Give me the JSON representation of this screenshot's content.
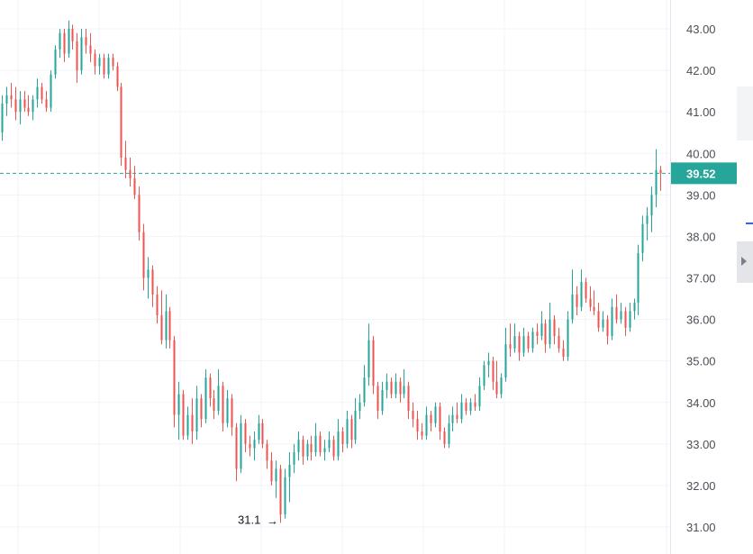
{
  "chart_data": {
    "type": "candlestick",
    "ylim": [
      30.7,
      43.7
    ],
    "y_ticks": [
      "43.00",
      "42.00",
      "41.00",
      "40.00",
      "39.00",
      "38.00",
      "37.00",
      "36.00",
      "35.00",
      "34.00",
      "33.00",
      "32.00",
      "31.00"
    ],
    "last_price": "39.52",
    "low_marker": {
      "label": "31.1",
      "value": 31.1
    },
    "up_color": "#26a69a",
    "down_color": "#ef5350",
    "price_line_color": "#26a69a",
    "grid": true,
    "candles": [
      {
        "o": 40.5,
        "h": 41.4,
        "l": 40.3,
        "c": 41.2
      },
      {
        "o": 41.2,
        "h": 41.6,
        "l": 40.9,
        "c": 41.4
      },
      {
        "o": 41.4,
        "h": 41.7,
        "l": 41.1,
        "c": 41.3
      },
      {
        "o": 41.3,
        "h": 41.6,
        "l": 40.8,
        "c": 41.0
      },
      {
        "o": 41.0,
        "h": 41.5,
        "l": 40.7,
        "c": 41.3
      },
      {
        "o": 41.3,
        "h": 41.5,
        "l": 41.0,
        "c": 41.1
      },
      {
        "o": 41.1,
        "h": 41.4,
        "l": 40.9,
        "c": 41.0
      },
      {
        "o": 41.0,
        "h": 41.4,
        "l": 40.8,
        "c": 41.3
      },
      {
        "o": 41.3,
        "h": 41.8,
        "l": 41.1,
        "c": 41.6
      },
      {
        "o": 41.6,
        "h": 41.7,
        "l": 41.2,
        "c": 41.3
      },
      {
        "o": 41.3,
        "h": 41.5,
        "l": 41.0,
        "c": 41.1
      },
      {
        "o": 41.1,
        "h": 42.0,
        "l": 41.0,
        "c": 41.9
      },
      {
        "o": 41.9,
        "h": 42.6,
        "l": 41.8,
        "c": 42.5
      },
      {
        "o": 42.5,
        "h": 43.0,
        "l": 42.3,
        "c": 42.9
      },
      {
        "o": 42.9,
        "h": 43.0,
        "l": 42.2,
        "c": 42.4
      },
      {
        "o": 42.4,
        "h": 43.2,
        "l": 42.3,
        "c": 43.0
      },
      {
        "o": 43.0,
        "h": 43.1,
        "l": 42.5,
        "c": 42.7
      },
      {
        "o": 42.7,
        "h": 42.9,
        "l": 41.7,
        "c": 42.0
      },
      {
        "o": 42.0,
        "h": 43.0,
        "l": 41.9,
        "c": 42.8
      },
      {
        "o": 42.8,
        "h": 43.0,
        "l": 42.4,
        "c": 42.6
      },
      {
        "o": 42.6,
        "h": 42.9,
        "l": 42.2,
        "c": 42.4
      },
      {
        "o": 42.4,
        "h": 42.5,
        "l": 41.9,
        "c": 42.1
      },
      {
        "o": 42.1,
        "h": 42.4,
        "l": 41.9,
        "c": 42.3
      },
      {
        "o": 42.3,
        "h": 42.4,
        "l": 41.8,
        "c": 41.9
      },
      {
        "o": 41.9,
        "h": 42.4,
        "l": 41.8,
        "c": 42.3
      },
      {
        "o": 42.3,
        "h": 42.4,
        "l": 42.0,
        "c": 42.1
      },
      {
        "o": 42.1,
        "h": 42.2,
        "l": 41.5,
        "c": 41.6
      },
      {
        "o": 41.6,
        "h": 41.7,
        "l": 39.7,
        "c": 39.9
      },
      {
        "o": 39.9,
        "h": 40.3,
        "l": 39.4,
        "c": 39.6
      },
      {
        "o": 39.6,
        "h": 39.9,
        "l": 39.2,
        "c": 39.4
      },
      {
        "o": 39.4,
        "h": 39.7,
        "l": 38.9,
        "c": 39.0
      },
      {
        "o": 39.0,
        "h": 39.2,
        "l": 37.9,
        "c": 38.1
      },
      {
        "o": 38.1,
        "h": 38.3,
        "l": 36.7,
        "c": 37.0
      },
      {
        "o": 37.0,
        "h": 37.5,
        "l": 36.5,
        "c": 37.2
      },
      {
        "o": 37.2,
        "h": 37.3,
        "l": 36.3,
        "c": 36.6
      },
      {
        "o": 36.6,
        "h": 36.8,
        "l": 35.9,
        "c": 36.1
      },
      {
        "o": 36.1,
        "h": 36.7,
        "l": 35.4,
        "c": 35.5
      },
      {
        "o": 35.5,
        "h": 36.6,
        "l": 35.3,
        "c": 36.2
      },
      {
        "o": 36.2,
        "h": 36.3,
        "l": 35.3,
        "c": 35.5
      },
      {
        "o": 35.5,
        "h": 35.6,
        "l": 33.4,
        "c": 33.7
      },
      {
        "o": 33.7,
        "h": 34.5,
        "l": 33.1,
        "c": 34.2
      },
      {
        "o": 34.2,
        "h": 34.3,
        "l": 33.1,
        "c": 33.2
      },
      {
        "o": 33.2,
        "h": 33.9,
        "l": 33.1,
        "c": 33.7
      },
      {
        "o": 33.7,
        "h": 34.1,
        "l": 33.0,
        "c": 33.3
      },
      {
        "o": 33.3,
        "h": 34.4,
        "l": 33.1,
        "c": 34.1
      },
      {
        "o": 34.1,
        "h": 34.2,
        "l": 33.4,
        "c": 33.6
      },
      {
        "o": 33.6,
        "h": 34.8,
        "l": 33.5,
        "c": 34.6
      },
      {
        "o": 34.6,
        "h": 34.7,
        "l": 33.9,
        "c": 34.1
      },
      {
        "o": 34.1,
        "h": 34.3,
        "l": 33.6,
        "c": 33.8
      },
      {
        "o": 33.8,
        "h": 34.8,
        "l": 33.7,
        "c": 34.4
      },
      {
        "o": 34.4,
        "h": 34.5,
        "l": 33.3,
        "c": 33.5
      },
      {
        "o": 33.5,
        "h": 34.3,
        "l": 33.4,
        "c": 34.1
      },
      {
        "o": 34.1,
        "h": 34.2,
        "l": 33.2,
        "c": 33.4
      },
      {
        "o": 33.4,
        "h": 33.5,
        "l": 32.1,
        "c": 32.4
      },
      {
        "o": 32.4,
        "h": 33.7,
        "l": 32.3,
        "c": 33.5
      },
      {
        "o": 33.5,
        "h": 33.6,
        "l": 32.8,
        "c": 33.0
      },
      {
        "o": 33.0,
        "h": 33.2,
        "l": 32.7,
        "c": 32.9
      },
      {
        "o": 32.9,
        "h": 33.3,
        "l": 32.6,
        "c": 33.1
      },
      {
        "o": 33.1,
        "h": 33.7,
        "l": 33.0,
        "c": 33.5
      },
      {
        "o": 33.5,
        "h": 33.6,
        "l": 32.9,
        "c": 33.0
      },
      {
        "o": 33.0,
        "h": 33.1,
        "l": 32.4,
        "c": 32.6
      },
      {
        "o": 32.6,
        "h": 32.8,
        "l": 32.0,
        "c": 32.1
      },
      {
        "o": 32.1,
        "h": 32.6,
        "l": 31.7,
        "c": 32.4
      },
      {
        "o": 32.4,
        "h": 32.5,
        "l": 31.1,
        "c": 31.3
      },
      {
        "o": 31.3,
        "h": 32.4,
        "l": 31.2,
        "c": 32.2
      },
      {
        "o": 32.2,
        "h": 32.8,
        "l": 31.6,
        "c": 32.5
      },
      {
        "o": 32.5,
        "h": 33.0,
        "l": 32.3,
        "c": 32.8
      },
      {
        "o": 32.8,
        "h": 33.3,
        "l": 32.6,
        "c": 33.1
      },
      {
        "o": 33.1,
        "h": 33.2,
        "l": 32.5,
        "c": 32.7
      },
      {
        "o": 32.7,
        "h": 33.1,
        "l": 32.6,
        "c": 33.0
      },
      {
        "o": 33.0,
        "h": 33.2,
        "l": 32.6,
        "c": 32.8
      },
      {
        "o": 32.8,
        "h": 33.5,
        "l": 32.7,
        "c": 33.2
      },
      {
        "o": 33.2,
        "h": 33.3,
        "l": 32.7,
        "c": 32.8
      },
      {
        "o": 32.8,
        "h": 33.1,
        "l": 32.6,
        "c": 32.9
      },
      {
        "o": 32.9,
        "h": 33.3,
        "l": 32.8,
        "c": 33.1
      },
      {
        "o": 33.1,
        "h": 33.2,
        "l": 32.6,
        "c": 32.7
      },
      {
        "o": 32.7,
        "h": 33.6,
        "l": 32.6,
        "c": 33.3
      },
      {
        "o": 33.3,
        "h": 33.4,
        "l": 32.8,
        "c": 33.0
      },
      {
        "o": 33.0,
        "h": 33.8,
        "l": 32.9,
        "c": 33.6
      },
      {
        "o": 33.6,
        "h": 33.7,
        "l": 32.9,
        "c": 33.1
      },
      {
        "o": 33.1,
        "h": 34.1,
        "l": 33.0,
        "c": 33.8
      },
      {
        "o": 33.8,
        "h": 34.2,
        "l": 33.6,
        "c": 34.0
      },
      {
        "o": 34.0,
        "h": 34.9,
        "l": 33.9,
        "c": 34.6
      },
      {
        "o": 34.6,
        "h": 35.9,
        "l": 34.4,
        "c": 35.5
      },
      {
        "o": 35.5,
        "h": 35.6,
        "l": 34.2,
        "c": 34.4
      },
      {
        "o": 34.4,
        "h": 34.5,
        "l": 33.6,
        "c": 33.8
      },
      {
        "o": 33.8,
        "h": 34.5,
        "l": 33.7,
        "c": 34.3
      },
      {
        "o": 34.3,
        "h": 34.7,
        "l": 34.1,
        "c": 34.5
      },
      {
        "o": 34.5,
        "h": 34.6,
        "l": 34.1,
        "c": 34.2
      },
      {
        "o": 34.2,
        "h": 34.7,
        "l": 34.1,
        "c": 34.5
      },
      {
        "o": 34.5,
        "h": 34.6,
        "l": 34.0,
        "c": 34.2
      },
      {
        "o": 34.2,
        "h": 34.8,
        "l": 34.1,
        "c": 34.4
      },
      {
        "o": 34.4,
        "h": 34.5,
        "l": 33.6,
        "c": 33.8
      },
      {
        "o": 33.8,
        "h": 34.0,
        "l": 33.4,
        "c": 33.6
      },
      {
        "o": 33.6,
        "h": 33.8,
        "l": 33.1,
        "c": 33.3
      },
      {
        "o": 33.3,
        "h": 33.5,
        "l": 33.1,
        "c": 33.2
      },
      {
        "o": 33.2,
        "h": 33.9,
        "l": 33.1,
        "c": 33.7
      },
      {
        "o": 33.7,
        "h": 33.8,
        "l": 33.3,
        "c": 33.5
      },
      {
        "o": 33.5,
        "h": 34.0,
        "l": 33.4,
        "c": 33.9
      },
      {
        "o": 33.9,
        "h": 34.0,
        "l": 33.1,
        "c": 33.3
      },
      {
        "o": 33.3,
        "h": 33.4,
        "l": 32.9,
        "c": 33.0
      },
      {
        "o": 33.0,
        "h": 33.7,
        "l": 32.9,
        "c": 33.5
      },
      {
        "o": 33.5,
        "h": 33.9,
        "l": 33.3,
        "c": 33.7
      },
      {
        "o": 33.7,
        "h": 34.0,
        "l": 33.5,
        "c": 33.6
      },
      {
        "o": 33.6,
        "h": 34.2,
        "l": 33.5,
        "c": 34.0
      },
      {
        "o": 34.0,
        "h": 34.1,
        "l": 33.7,
        "c": 33.8
      },
      {
        "o": 33.8,
        "h": 34.1,
        "l": 33.7,
        "c": 34.0
      },
      {
        "o": 34.0,
        "h": 34.2,
        "l": 33.8,
        "c": 33.9
      },
      {
        "o": 33.9,
        "h": 34.6,
        "l": 33.8,
        "c": 34.4
      },
      {
        "o": 34.4,
        "h": 35.0,
        "l": 34.3,
        "c": 34.9
      },
      {
        "o": 34.9,
        "h": 35.2,
        "l": 34.6,
        "c": 35.0
      },
      {
        "o": 35.0,
        "h": 35.1,
        "l": 34.3,
        "c": 34.5
      },
      {
        "o": 34.5,
        "h": 35.0,
        "l": 34.1,
        "c": 34.2
      },
      {
        "o": 34.2,
        "h": 34.7,
        "l": 34.1,
        "c": 34.6
      },
      {
        "o": 34.6,
        "h": 35.8,
        "l": 34.5,
        "c": 35.4
      },
      {
        "o": 35.4,
        "h": 35.9,
        "l": 35.1,
        "c": 35.3
      },
      {
        "o": 35.3,
        "h": 35.9,
        "l": 35.2,
        "c": 35.6
      },
      {
        "o": 35.6,
        "h": 35.7,
        "l": 35.0,
        "c": 35.2
      },
      {
        "o": 35.2,
        "h": 35.8,
        "l": 35.1,
        "c": 35.6
      },
      {
        "o": 35.6,
        "h": 35.7,
        "l": 35.2,
        "c": 35.3
      },
      {
        "o": 35.3,
        "h": 35.8,
        "l": 35.2,
        "c": 35.7
      },
      {
        "o": 35.7,
        "h": 35.9,
        "l": 35.4,
        "c": 35.6
      },
      {
        "o": 35.6,
        "h": 36.2,
        "l": 35.5,
        "c": 35.9
      },
      {
        "o": 35.9,
        "h": 36.0,
        "l": 35.2,
        "c": 35.4
      },
      {
        "o": 35.4,
        "h": 36.4,
        "l": 35.3,
        "c": 36.0
      },
      {
        "o": 36.0,
        "h": 36.1,
        "l": 35.4,
        "c": 35.6
      },
      {
        "o": 35.6,
        "h": 35.8,
        "l": 35.2,
        "c": 35.3
      },
      {
        "o": 35.3,
        "h": 35.5,
        "l": 35.0,
        "c": 35.1
      },
      {
        "o": 35.1,
        "h": 36.2,
        "l": 35.0,
        "c": 36.0
      },
      {
        "o": 36.0,
        "h": 37.2,
        "l": 35.9,
        "c": 36.6
      },
      {
        "o": 36.6,
        "h": 36.8,
        "l": 36.1,
        "c": 36.3
      },
      {
        "o": 36.3,
        "h": 37.2,
        "l": 36.2,
        "c": 36.9
      },
      {
        "o": 36.9,
        "h": 37.0,
        "l": 36.4,
        "c": 36.5
      },
      {
        "o": 36.5,
        "h": 36.8,
        "l": 36.2,
        "c": 36.3
      },
      {
        "o": 36.3,
        "h": 36.7,
        "l": 36.1,
        "c": 36.2
      },
      {
        "o": 36.2,
        "h": 36.4,
        "l": 35.7,
        "c": 35.8
      },
      {
        "o": 35.8,
        "h": 36.2,
        "l": 35.7,
        "c": 36.0
      },
      {
        "o": 36.0,
        "h": 36.1,
        "l": 35.4,
        "c": 35.6
      },
      {
        "o": 35.6,
        "h": 36.5,
        "l": 35.5,
        "c": 36.3
      },
      {
        "o": 36.3,
        "h": 36.6,
        "l": 35.9,
        "c": 36.0
      },
      {
        "o": 36.0,
        "h": 36.4,
        "l": 35.9,
        "c": 36.2
      },
      {
        "o": 36.2,
        "h": 36.3,
        "l": 35.6,
        "c": 35.8
      },
      {
        "o": 35.8,
        "h": 36.4,
        "l": 35.7,
        "c": 36.2
      },
      {
        "o": 36.2,
        "h": 36.5,
        "l": 36.0,
        "c": 36.4
      },
      {
        "o": 36.4,
        "h": 37.8,
        "l": 36.1,
        "c": 37.6
      },
      {
        "o": 37.6,
        "h": 38.5,
        "l": 37.4,
        "c": 38.3
      },
      {
        "o": 38.3,
        "h": 38.7,
        "l": 37.9,
        "c": 38.5
      },
      {
        "o": 38.5,
        "h": 39.2,
        "l": 38.1,
        "c": 39.0
      },
      {
        "o": 39.0,
        "h": 40.1,
        "l": 38.7,
        "c": 39.6
      },
      {
        "o": 39.6,
        "h": 39.7,
        "l": 39.1,
        "c": 39.52
      }
    ]
  }
}
